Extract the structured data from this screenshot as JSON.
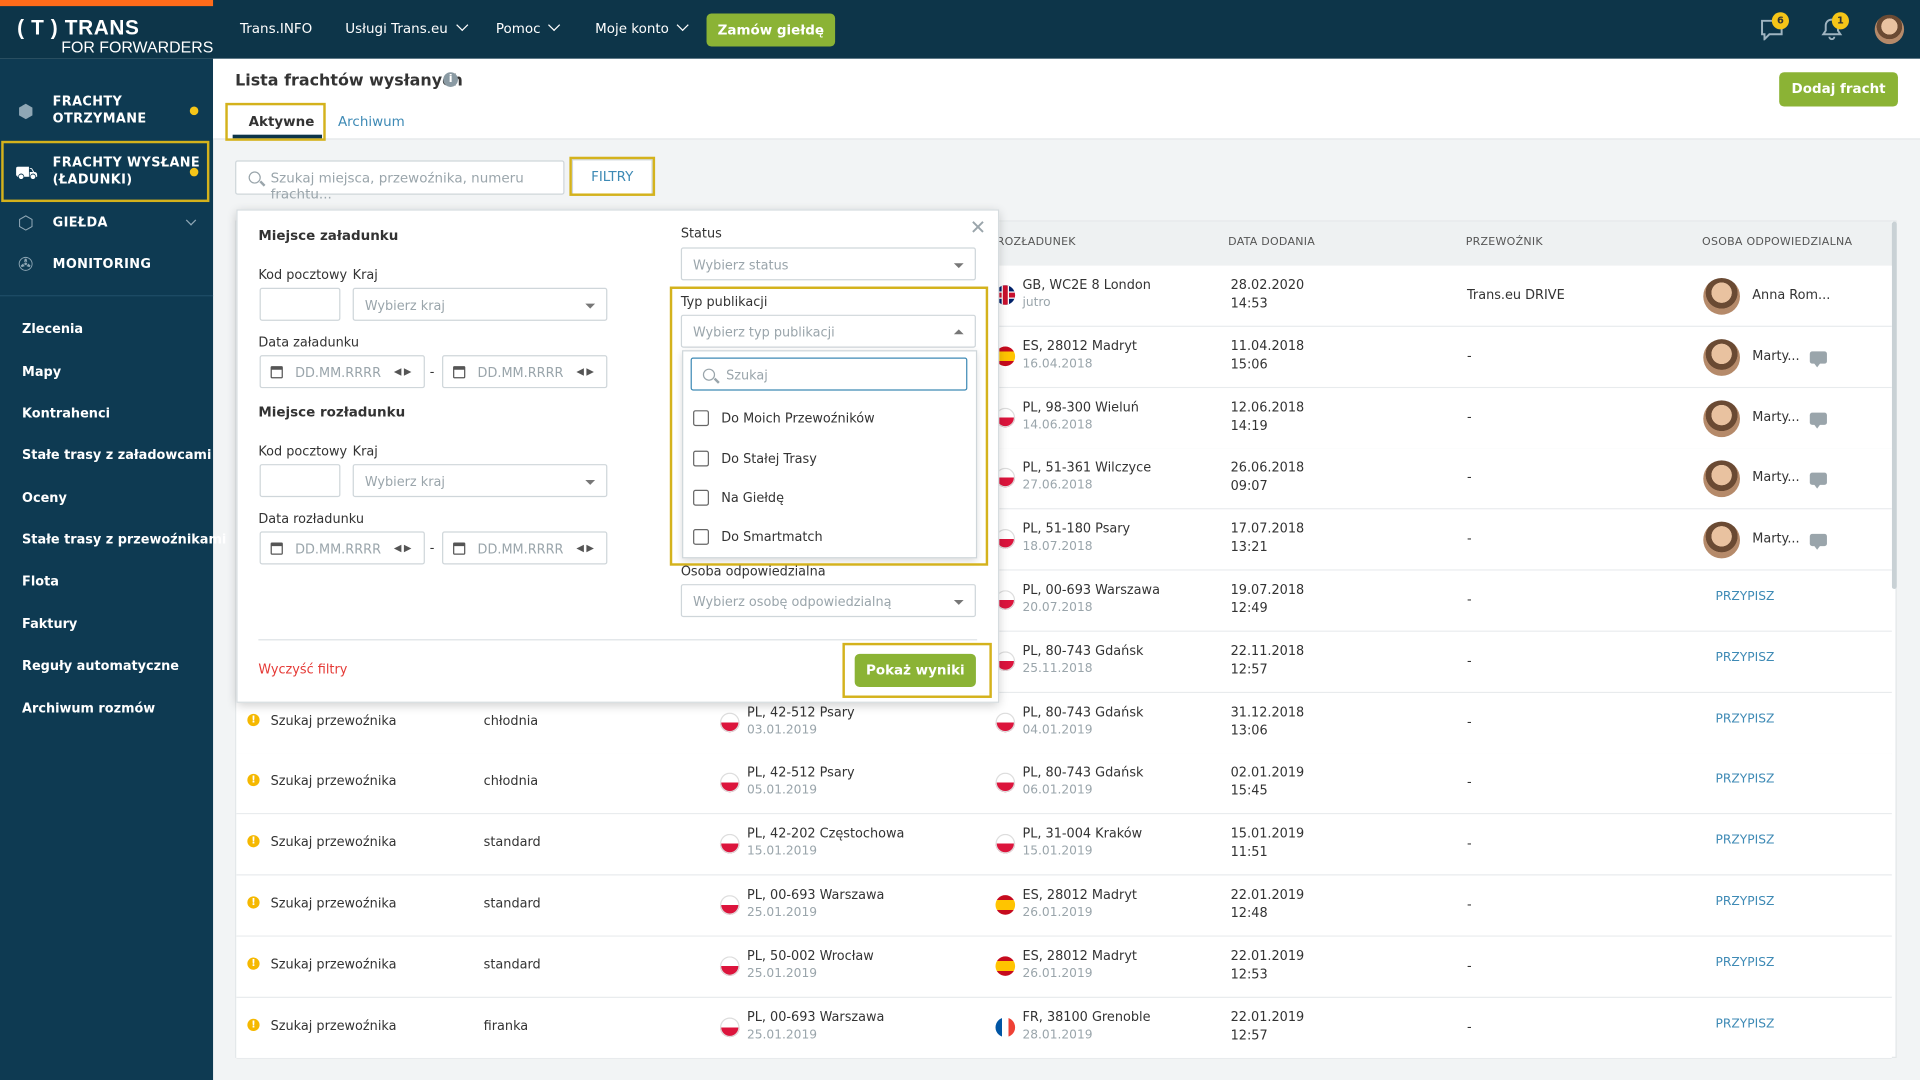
{
  "brand": {
    "line1": "( T ) TRANS",
    "line2": "FOR FORWARDERS"
  },
  "topnav": {
    "items": [
      "Trans.INFO",
      "Usługi Trans.eu",
      "Pomoc",
      "Moje konto"
    ],
    "cta": "Zamów giełdę",
    "messages_count": "6",
    "notifications_count": "1"
  },
  "sidebar": {
    "main": [
      {
        "label": "FRACHTY\nOTRZYMANE",
        "icon": "cubes-icon"
      },
      {
        "label": "FRACHTY WYSŁANE\n(ŁADUNKI)",
        "icon": "forklift-icon"
      },
      {
        "label": "GIEŁDA",
        "icon": "box-icon"
      },
      {
        "label": "MONITORING",
        "icon": "satellite-icon"
      }
    ],
    "links": [
      "Zlecenia",
      "Mapy",
      "Kontrahenci",
      "Stałe trasy z załadowcami",
      "Oceny",
      "Stałe trasy z przewoźnikami",
      "Flota",
      "Faktury",
      "Reguły automatyczne",
      "Archiwum rozmów"
    ]
  },
  "page": {
    "title": "Lista frachtów wysłanych",
    "tabs": [
      "Aktywne",
      "Archiwum"
    ],
    "add_button": "Dodaj fracht",
    "search_placeholder": "Szukaj miejsca, przewoźnika, numeru frachtu...",
    "filters_button": "FILTRY"
  },
  "table": {
    "headers": [
      "ROZŁADUNEK",
      "DATA DODANIA",
      "PRZEWOŹNIK",
      "OSOBA ODPOWIEDZIALNA"
    ],
    "rows": [
      {
        "status": "",
        "type": "",
        "load": "",
        "load_date": "",
        "load_flag": "",
        "unload": "GB, WC2E 8 London",
        "unload_date": "jutro",
        "unload_flag": "gb",
        "added_date": "28.02.2020",
        "added_time": "14:53",
        "carrier": "Trans.eu DRIVE",
        "person": "Anna Rom...",
        "assign": ""
      },
      {
        "status": "",
        "type": "",
        "load": "",
        "load_date": "",
        "load_flag": "",
        "unload": "ES, 28012 Madryt",
        "unload_date": "16.04.2018",
        "unload_flag": "es",
        "added_date": "11.04.2018",
        "added_time": "15:06",
        "carrier": "-",
        "person": "Marty...",
        "assign": ""
      },
      {
        "status": "",
        "type": "",
        "load": "",
        "load_date": "",
        "load_flag": "",
        "unload": "PL, 98-300 Wieluń",
        "unload_date": "14.06.2018",
        "unload_flag": "pl",
        "added_date": "12.06.2018",
        "added_time": "14:19",
        "carrier": "-",
        "person": "Marty...",
        "assign": ""
      },
      {
        "status": "",
        "type": "",
        "load": "",
        "load_date": "",
        "load_flag": "",
        "unload": "PL, 51-361 Wilczyce",
        "unload_date": "27.06.2018",
        "unload_flag": "pl",
        "added_date": "26.06.2018",
        "added_time": "09:07",
        "carrier": "-",
        "person": "Marty...",
        "assign": ""
      },
      {
        "status": "",
        "type": "",
        "load": "",
        "load_date": "",
        "load_flag": "",
        "unload": "PL, 51-180 Psary",
        "unload_date": "18.07.2018",
        "unload_flag": "pl",
        "added_date": "17.07.2018",
        "added_time": "13:21",
        "carrier": "-",
        "person": "Marty...",
        "assign": ""
      },
      {
        "status": "",
        "type": "",
        "load": "",
        "load_date": "",
        "load_flag": "",
        "unload": "PL, 00-693 Warszawa",
        "unload_date": "20.07.2018",
        "unload_flag": "pl",
        "added_date": "19.07.2018",
        "added_time": "12:49",
        "carrier": "-",
        "person": "",
        "assign": "PRZYPISZ"
      },
      {
        "status": "",
        "type": "",
        "load": "",
        "load_date": "",
        "load_flag": "",
        "unload": "PL, 80-743 Gdańsk",
        "unload_date": "25.11.2018",
        "unload_flag": "pl",
        "added_date": "22.11.2018",
        "added_time": "12:57",
        "carrier": "-",
        "person": "",
        "assign": "PRZYPISZ"
      },
      {
        "status": "Szukaj przewoźnika",
        "type": "chłodnia",
        "load": "PL, 42-512 Psary",
        "load_date": "03.01.2019",
        "load_flag": "pl",
        "unload": "PL, 80-743 Gdańsk",
        "unload_date": "04.01.2019",
        "unload_flag": "pl",
        "added_date": "31.12.2018",
        "added_time": "13:06",
        "carrier": "-",
        "person": "",
        "assign": "PRZYPISZ"
      },
      {
        "status": "Szukaj przewoźnika",
        "type": "chłodnia",
        "load": "PL, 42-512 Psary",
        "load_date": "05.01.2019",
        "load_flag": "pl",
        "unload": "PL, 80-743 Gdańsk",
        "unload_date": "06.01.2019",
        "unload_flag": "pl",
        "added_date": "02.01.2019",
        "added_time": "15:45",
        "carrier": "-",
        "person": "",
        "assign": "PRZYPISZ"
      },
      {
        "status": "Szukaj przewoźnika",
        "type": "standard",
        "load": "PL, 42-202 Częstochowa",
        "load_date": "15.01.2019",
        "load_flag": "pl",
        "unload": "PL, 31-004 Kraków",
        "unload_date": "15.01.2019",
        "unload_flag": "pl",
        "added_date": "15.01.2019",
        "added_time": "11:51",
        "carrier": "-",
        "person": "",
        "assign": "PRZYPISZ"
      },
      {
        "status": "Szukaj przewoźnika",
        "type": "standard",
        "load": "PL, 00-693 Warszawa",
        "load_date": "25.01.2019",
        "load_flag": "pl",
        "unload": "ES, 28012 Madryt",
        "unload_date": "26.01.2019",
        "unload_flag": "es",
        "added_date": "22.01.2019",
        "added_time": "12:48",
        "carrier": "-",
        "person": "",
        "assign": "PRZYPISZ"
      },
      {
        "status": "Szukaj przewoźnika",
        "type": "standard",
        "load": "PL, 50-002 Wrocław",
        "load_date": "25.01.2019",
        "load_flag": "pl",
        "unload": "ES, 28012 Madryt",
        "unload_date": "26.01.2019",
        "unload_flag": "es",
        "added_date": "22.01.2019",
        "added_time": "12:53",
        "carrier": "-",
        "person": "",
        "assign": "PRZYPISZ"
      },
      {
        "status": "Szukaj przewoźnika",
        "type": "firanka",
        "load": "PL, 00-693 Warszawa",
        "load_date": "25.01.2019",
        "load_flag": "pl",
        "unload": "FR, 38100 Grenoble",
        "unload_date": "28.01.2019",
        "unload_flag": "fr",
        "added_date": "22.01.2019",
        "added_time": "12:57",
        "carrier": "-",
        "person": "",
        "assign": "PRZYPISZ"
      }
    ]
  },
  "filters": {
    "loading_title": "Miejsce załadunku",
    "unloading_title": "Miejsce rozładunku",
    "postal_label": "Kod pocztowy",
    "country_label": "Kraj",
    "country_placeholder": "Wybierz kraj",
    "load_date_label": "Data załadunku",
    "unload_date_label": "Data rozładunku",
    "date_placeholder": "DD.MM.RRRR",
    "status_label": "Status",
    "status_placeholder": "Wybierz status",
    "pubtype_label": "Typ publikacji",
    "pubtype_placeholder": "Wybierz typ publikacji",
    "search_placeholder": "Szukaj",
    "options": [
      "Do Moich Przewoźników",
      "Do Stałej Trasy",
      "Na Giełdę",
      "Do Smartmatch"
    ],
    "person_label": "Osoba odpowiedzialna",
    "person_placeholder": "Wybierz osobę odpowiedzialną",
    "clear": "Wyczyść filtry",
    "show": "Pokaż wyniki"
  }
}
